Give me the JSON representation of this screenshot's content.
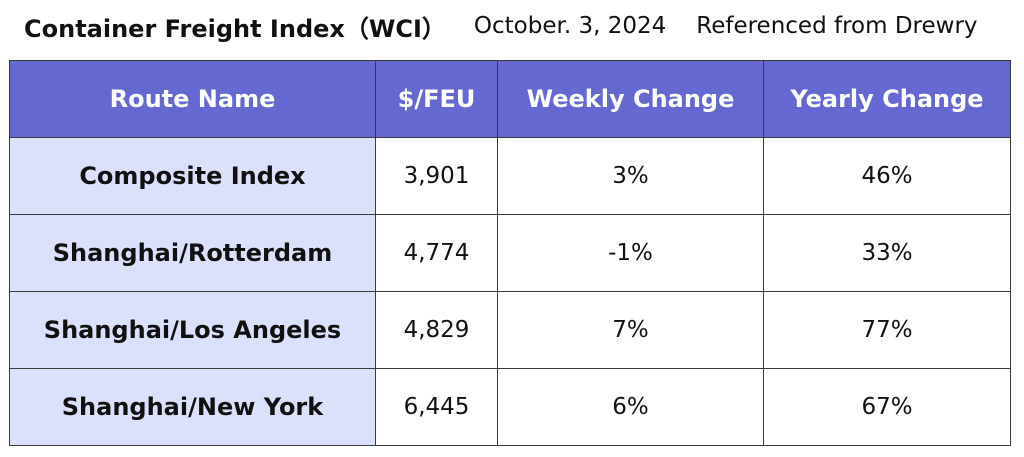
{
  "header": {
    "title": "Container Freight Index（WCI）",
    "date": "October. 3, 2024",
    "source": "Referenced from Drewry"
  },
  "colors": {
    "header_bg": "#6468d0",
    "route_cell_bg": "#dce1fb"
  },
  "chart_data": {
    "type": "table",
    "columns": [
      "Route Name",
      "$/FEU",
      "Weekly Change",
      "Yearly Change"
    ],
    "rows": [
      {
        "route": "Composite Index",
        "price": "3,901",
        "weekly": "3%",
        "yearly": "46%"
      },
      {
        "route": "Shanghai/Rotterdam",
        "price": "4,774",
        "weekly": "-1%",
        "yearly": "33%"
      },
      {
        "route": "Shanghai/Los Angeles",
        "price": "4,829",
        "weekly": "7%",
        "yearly": "77%"
      },
      {
        "route": "Shanghai/New York",
        "price": "6,445",
        "weekly": "6%",
        "yearly": "67%"
      }
    ]
  }
}
